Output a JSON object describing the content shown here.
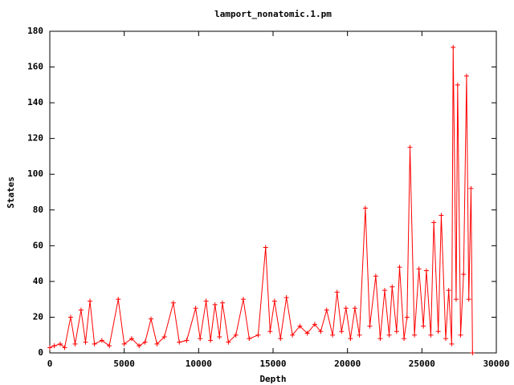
{
  "chart_data": {
    "type": "line",
    "title": "lamport_nonatomic.1.pm",
    "x_label": "Depth",
    "y_label": "States",
    "x": [
      0,
      300,
      700,
      1000,
      1400,
      1700,
      2100,
      2400,
      2700,
      3000,
      3500,
      4000,
      4600,
      5000,
      5500,
      6000,
      6400,
      6800,
      7200,
      7700,
      8300,
      8700,
      9200,
      9800,
      10100,
      10500,
      10800,
      11100,
      11400,
      11600,
      12000,
      12500,
      13000,
      13400,
      14000,
      14500,
      14800,
      15100,
      15500,
      15900,
      16300,
      16800,
      17300,
      17800,
      18200,
      18600,
      19000,
      19300,
      19600,
      19900,
      20200,
      20500,
      20800,
      21200,
      21500,
      21900,
      22200,
      22500,
      22800,
      23000,
      23300,
      23500,
      23800,
      24000,
      24200,
      24500,
      24800,
      25100,
      25300,
      25600,
      25800,
      26100,
      26300,
      26600,
      26800,
      27000,
      27100,
      27300,
      27400,
      27600,
      27800,
      28000,
      28150,
      28300,
      28400
    ],
    "series": [
      {
        "color": "#ff0000",
        "values": [
          3,
          4,
          5,
          3,
          20,
          5,
          24,
          6,
          29,
          5,
          7,
          4,
          30,
          5,
          8,
          4,
          6,
          19,
          5,
          9,
          28,
          6,
          7,
          25,
          8,
          29,
          7,
          27,
          9,
          28,
          6,
          10,
          30,
          8,
          10,
          59,
          12,
          29,
          8,
          31,
          10,
          15,
          11,
          16,
          12,
          24,
          10,
          34,
          12,
          25,
          8,
          25,
          10,
          81,
          15,
          43,
          8,
          35,
          10,
          37,
          12,
          48,
          8,
          20,
          115,
          10,
          47,
          15,
          46,
          10,
          73,
          12,
          77,
          8,
          35,
          5,
          171,
          30,
          150,
          10,
          44,
          155,
          30,
          92,
          0
        ]
      }
    ],
    "xlim": [
      0,
      30000
    ],
    "xticks": [
      0,
      5000,
      10000,
      15000,
      20000,
      25000,
      30000
    ],
    "ylim": [
      0,
      180
    ],
    "yticks": [
      0,
      20,
      40,
      60,
      80,
      100,
      120,
      140,
      160,
      180
    ]
  }
}
